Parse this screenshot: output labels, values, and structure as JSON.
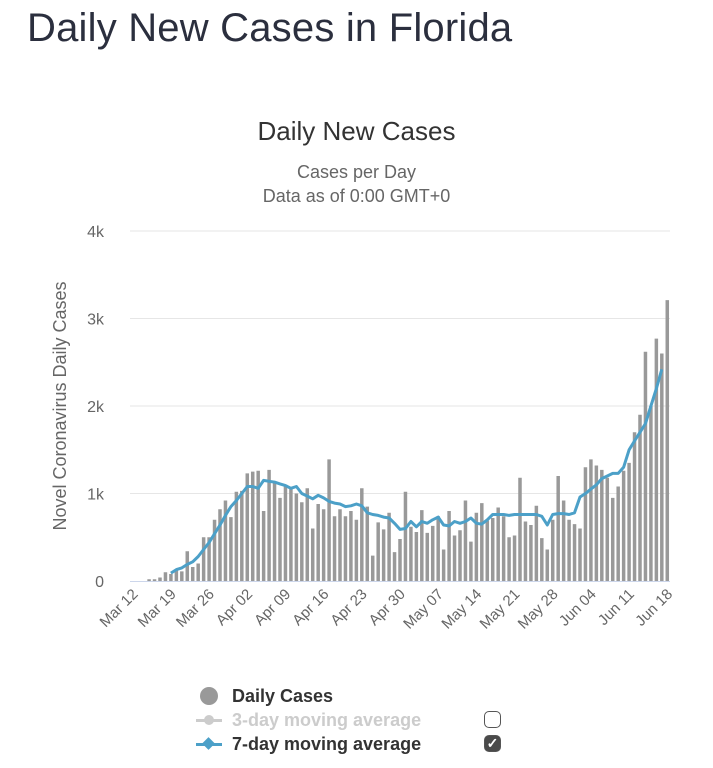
{
  "page": {
    "title": "Daily New Cases in Florida"
  },
  "chart_data": {
    "type": "bar",
    "title": "Daily New Cases",
    "subtitle_lines": [
      "Cases per Day",
      "Data as of 0:00 GMT+0"
    ],
    "ylabel": "Novel Coronavirus Daily Cases",
    "xlabel": "",
    "ylim": [
      0,
      4000
    ],
    "y_ticks": [
      0,
      1000,
      2000,
      3000,
      4000
    ],
    "y_tick_labels": [
      "0",
      "1k",
      "2k",
      "3k",
      "4k"
    ],
    "grid": true,
    "start_date": "Mar 12",
    "x_tick_labels": [
      "Mar 12",
      "Mar 19",
      "Mar 26",
      "Apr 02",
      "Apr 09",
      "Apr 16",
      "Apr 23",
      "Apr 30",
      "May 07",
      "May 14",
      "May 21",
      "May 28",
      "Jun 04",
      "Jun 11",
      "Jun 18"
    ],
    "x_tick_every_days": 7,
    "colors": {
      "bars": "#999999",
      "ma7": "#4ca0c8",
      "ma3": "#cccccc",
      "grid": "#e6e6e6",
      "axis": "#ccd6eb"
    },
    "series": [
      {
        "name": "Daily Cases",
        "type": "bar",
        "values": [
          0,
          0,
          0,
          20,
          20,
          40,
          100,
          80,
          130,
          110,
          340,
          160,
          200,
          500,
          500,
          700,
          820,
          920,
          730,
          1020,
          1030,
          1230,
          1250,
          1260,
          800,
          1270,
          1120,
          950,
          1100,
          1050,
          1000,
          900,
          1060,
          600,
          880,
          820,
          1390,
          740,
          820,
          740,
          800,
          700,
          1060,
          850,
          290,
          670,
          590,
          780,
          330,
          480,
          1020,
          620,
          560,
          810,
          550,
          630,
          740,
          360,
          800,
          520,
          580,
          920,
          450,
          780,
          890,
          690,
          720,
          840,
          740,
          500,
          520,
          1180,
          680,
          640,
          860,
          490,
          360,
          700,
          1200,
          920,
          700,
          650,
          600,
          1300,
          1390,
          1320,
          1270,
          1180,
          950,
          1080,
          1260,
          1350,
          1700,
          1900,
          2620,
          2000,
          2770,
          2600,
          3210
        ]
      },
      {
        "name": "7-day moving average",
        "type": "line",
        "start_index": 7,
        "values": [
          90,
          130,
          150,
          190,
          220,
          280,
          360,
          440,
          540,
          640,
          750,
          850,
          920,
          1000,
          1080,
          1080,
          1060,
          1150,
          1140,
          1130,
          1110,
          1090,
          1060,
          1080,
          1000,
          970,
          940,
          980,
          950,
          910,
          890,
          880,
          850,
          860,
          880,
          860,
          780,
          760,
          750,
          730,
          720,
          660,
          590,
          600,
          680,
          620,
          680,
          660,
          700,
          730,
          640,
          630,
          680,
          660,
          680,
          720,
          660,
          650,
          700,
          760,
          760,
          760,
          750,
          760,
          760,
          760,
          760,
          760,
          740,
          640,
          760,
          770,
          770,
          760,
          780,
          960,
          1000,
          1050,
          1100,
          1170,
          1200,
          1230,
          1230,
          1300,
          1500,
          1600,
          1700,
          1800,
          2000,
          2200,
          2420
        ]
      },
      {
        "name": "3-day moving average",
        "type": "line",
        "visible": false,
        "values": []
      }
    ],
    "legend": {
      "position": "bottom-center",
      "items": [
        {
          "label": "Daily Cases",
          "symbol": "circle",
          "visible": true,
          "has_checkbox": false
        },
        {
          "label": "3-day moving average",
          "symbol": "line-circle",
          "visible": false,
          "has_checkbox": true,
          "checked": false
        },
        {
          "label": "7-day moving average",
          "symbol": "line-diamond",
          "visible": true,
          "has_checkbox": true,
          "checked": true
        }
      ]
    }
  }
}
